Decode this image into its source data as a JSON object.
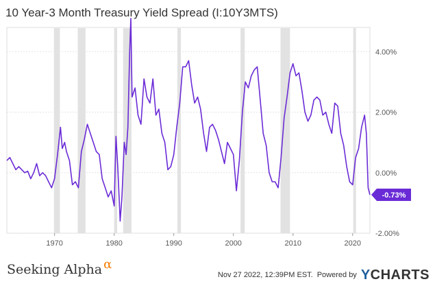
{
  "header": {
    "title": "10 Year-3 Month Treasury Yield Spread (I:10Y3MTS)"
  },
  "footer": {
    "brand": "Seeking Alpha",
    "brand_mark": "α",
    "timestamp": "Nov 27 2022, 12:39PM EST.",
    "powered_by": "Powered by",
    "provider_y": "Y",
    "provider_rest": "CHARTS"
  },
  "colors": {
    "line": "#6a2bd6",
    "recession": "#e2e2e2",
    "label_bg": "#6a2bd6",
    "grid": "#e3e3e3"
  },
  "chart_data": {
    "type": "line",
    "title": "10 Year-3 Month Treasury Yield Spread (I:10Y3MTS)",
    "xlabel": "",
    "ylabel": "",
    "xlim": [
      1962,
      2022.9
    ],
    "ylim": [
      -2.0,
      4.8
    ],
    "x_ticks": [
      1970,
      1980,
      1990,
      2000,
      2010,
      2020
    ],
    "x_tick_labels": [
      "1970",
      "1980",
      "1990",
      "2000",
      "2010",
      "2020"
    ],
    "y_ticks": [
      -2,
      0,
      2,
      4
    ],
    "y_tick_labels": [
      "-2.00%",
      "0.00%",
      "2.00%",
      "4.00%"
    ],
    "last_value_label": "-0.73%",
    "recessions": [
      [
        1969.9,
        1970.9
      ],
      [
        1973.9,
        1975.2
      ],
      [
        1980.0,
        1980.5
      ],
      [
        1981.5,
        1982.9
      ],
      [
        1990.6,
        1991.2
      ],
      [
        2001.2,
        2001.9
      ],
      [
        2007.9,
        2009.5
      ],
      [
        2020.1,
        2020.4
      ]
    ],
    "series": [
      {
        "x": [
          1962.0,
          1962.5,
          1963.0,
          1963.5,
          1964.0,
          1964.5,
          1965.0,
          1965.5,
          1966.0,
          1966.5,
          1967.0,
          1967.5,
          1968.0,
          1968.5,
          1969.0,
          1969.5,
          1970.0,
          1970.5,
          1971.0,
          1971.3,
          1971.7,
          1972.0,
          1972.5,
          1973.0,
          1973.5,
          1974.0,
          1974.5,
          1975.0,
          1975.5,
          1976.0,
          1976.5,
          1977.0,
          1977.5,
          1978.0,
          1978.5,
          1979.0,
          1979.5,
          1980.0,
          1980.3,
          1980.6,
          1981.0,
          1981.3,
          1981.7,
          1982.0,
          1982.3,
          1982.6,
          1982.8,
          1983.0,
          1983.5,
          1984.0,
          1984.5,
          1985.0,
          1985.5,
          1986.0,
          1986.5,
          1987.0,
          1987.5,
          1988.0,
          1988.5,
          1989.0,
          1989.5,
          1990.0,
          1990.5,
          1991.0,
          1991.5,
          1992.0,
          1992.5,
          1993.0,
          1993.5,
          1994.0,
          1994.5,
          1995.0,
          1995.5,
          1996.0,
          1996.5,
          1997.0,
          1997.5,
          1998.0,
          1998.5,
          1999.0,
          1999.5,
          2000.0,
          2000.5,
          2001.0,
          2001.5,
          2002.0,
          2002.5,
          2003.0,
          2003.5,
          2004.0,
          2004.5,
          2005.0,
          2005.5,
          2006.0,
          2006.5,
          2007.0,
          2007.5,
          2008.0,
          2008.5,
          2009.0,
          2009.5,
          2010.0,
          2010.5,
          2011.0,
          2011.5,
          2012.0,
          2012.5,
          2013.0,
          2013.5,
          2014.0,
          2014.5,
          2015.0,
          2015.5,
          2016.0,
          2016.5,
          2017.0,
          2017.5,
          2018.0,
          2018.5,
          2019.0,
          2019.5,
          2020.0,
          2020.5,
          2021.0,
          2021.5,
          2022.0,
          2022.3,
          2022.6,
          2022.9
        ],
        "y": [
          0.4,
          0.5,
          0.3,
          0.1,
          0.2,
          0.1,
          0.0,
          0.05,
          -0.2,
          0.0,
          0.3,
          -0.1,
          0.0,
          -0.1,
          -0.3,
          -0.5,
          -0.2,
          0.6,
          1.5,
          0.8,
          1.0,
          0.7,
          0.4,
          -0.4,
          -0.3,
          -0.5,
          0.7,
          1.1,
          1.6,
          1.3,
          1.0,
          0.7,
          0.6,
          -0.2,
          -0.5,
          -0.8,
          -0.6,
          -1.1,
          1.2,
          0.2,
          -1.6,
          -0.8,
          1.0,
          0.6,
          1.5,
          4.0,
          5.1,
          2.5,
          2.8,
          1.9,
          1.6,
          3.1,
          2.5,
          2.3,
          3.1,
          1.9,
          2.1,
          1.3,
          1.0,
          0.1,
          0.2,
          0.6,
          1.5,
          2.3,
          3.5,
          3.5,
          3.7,
          2.9,
          2.3,
          2.5,
          2.1,
          1.3,
          0.7,
          1.5,
          1.6,
          1.4,
          1.1,
          0.7,
          0.3,
          1.0,
          0.8,
          0.6,
          -0.6,
          0.4,
          2.0,
          3.0,
          2.8,
          3.2,
          3.4,
          3.5,
          2.4,
          1.3,
          0.9,
          0.0,
          -0.3,
          -0.3,
          -0.5,
          0.5,
          1.8,
          2.5,
          3.3,
          3.6,
          3.2,
          3.3,
          2.7,
          2.0,
          1.7,
          1.9,
          2.4,
          2.5,
          2.4,
          1.9,
          2.0,
          1.6,
          1.3,
          2.3,
          2.2,
          1.3,
          0.9,
          0.2,
          -0.3,
          -0.4,
          0.5,
          0.8,
          1.5,
          1.9,
          1.3,
          -0.5,
          -0.73
        ]
      }
    ]
  }
}
